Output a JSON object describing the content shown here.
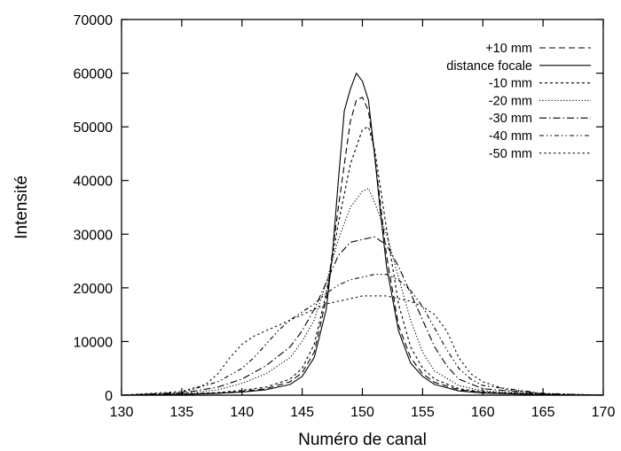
{
  "chart_data": {
    "type": "line",
    "title": "",
    "xlabel": "Numéro de canal",
    "ylabel": "Intensité",
    "xlim": [
      130,
      170
    ],
    "ylim": [
      0,
      70000
    ],
    "xticks": [
      130,
      135,
      140,
      145,
      150,
      155,
      160,
      165,
      170
    ],
    "yticks": [
      0,
      10000,
      20000,
      30000,
      40000,
      50000,
      60000,
      70000
    ],
    "grid": false,
    "legend_position": "top-right",
    "series": [
      {
        "name": "+10 mm",
        "dash": "7,4",
        "x": [
          130,
          135,
          138,
          140,
          142,
          144,
          145,
          146,
          147,
          148,
          149,
          149.5,
          150,
          150.5,
          151,
          152,
          153,
          154,
          155,
          156,
          158,
          160,
          165,
          170
        ],
        "y": [
          0,
          150,
          400,
          700,
          1200,
          2500,
          4200,
          8000,
          18000,
          35000,
          51000,
          55000,
          55500,
          53000,
          45000,
          26000,
          13000,
          7000,
          4000,
          2400,
          1000,
          500,
          100,
          0
        ]
      },
      {
        "name": "distance focale",
        "dash": "",
        "x": [
          130,
          135,
          138,
          140,
          142,
          144,
          145,
          146,
          147,
          147.5,
          148,
          148.5,
          149,
          149.5,
          150,
          150.5,
          151,
          151.5,
          152,
          153,
          154,
          155,
          156,
          158,
          160,
          165,
          170
        ],
        "y": [
          0,
          150,
          350,
          600,
          1000,
          2000,
          3500,
          7000,
          16000,
          26000,
          40000,
          53000,
          57000,
          60000,
          58500,
          55000,
          45000,
          34000,
          24000,
          12000,
          6000,
          3500,
          2000,
          800,
          400,
          100,
          0
        ]
      },
      {
        "name": "-10 mm",
        "dash": "3,3",
        "x": [
          130,
          135,
          138,
          140,
          142,
          144,
          145,
          146,
          147,
          148,
          149,
          150,
          150.5,
          151,
          152,
          153,
          154,
          155,
          156,
          158,
          160,
          165,
          170
        ],
        "y": [
          0,
          200,
          500,
          900,
          1500,
          3000,
          5000,
          9500,
          19000,
          32000,
          43000,
          49500,
          50000,
          46000,
          31000,
          17000,
          9000,
          5000,
          3000,
          1200,
          600,
          150,
          0
        ]
      },
      {
        "name": "-20 mm",
        "dash": "1.2,2.2",
        "x": [
          130,
          135,
          138,
          140,
          142,
          144,
          145,
          146,
          147,
          148,
          149,
          150,
          150.5,
          151,
          152,
          153,
          154,
          155,
          156,
          158,
          160,
          165,
          170
        ],
        "y": [
          0,
          300,
          1000,
          2200,
          4000,
          7000,
          10000,
          14000,
          21000,
          29000,
          35000,
          38000,
          38500,
          36000,
          30000,
          22000,
          14000,
          8000,
          4500,
          1800,
          800,
          200,
          0
        ]
      },
      {
        "name": "-30 mm",
        "dash": "8,3,1.5,3",
        "x": [
          130,
          135,
          138,
          140,
          142,
          144,
          145,
          146,
          147,
          148,
          149,
          150,
          151,
          152,
          153,
          154,
          155,
          156,
          157,
          158,
          160,
          165,
          170
        ],
        "y": [
          0,
          400,
          1500,
          3000,
          5500,
          9000,
          12000,
          16000,
          21000,
          26000,
          28500,
          29000,
          29500,
          28000,
          24000,
          19000,
          14000,
          9000,
          5500,
          3000,
          1200,
          250,
          0
        ]
      },
      {
        "name": "-40 mm",
        "dash": "5,3,1.5,3,1.5,3",
        "x": [
          130,
          135,
          138,
          140,
          141,
          142,
          143,
          144,
          145,
          146,
          147,
          148,
          149,
          150,
          151,
          152,
          153,
          154,
          155,
          156,
          157,
          158,
          159,
          160,
          165,
          170
        ],
        "y": [
          0,
          500,
          2500,
          5000,
          7000,
          9500,
          12000,
          14000,
          15500,
          17000,
          19000,
          20500,
          21500,
          22000,
          22500,
          22500,
          21500,
          19500,
          16500,
          12500,
          8500,
          5000,
          3000,
          1800,
          350,
          0
        ]
      },
      {
        "name": "-50 mm",
        "dash": "2.2,3.2",
        "x": [
          130,
          135,
          137,
          138,
          139,
          140,
          141,
          142,
          143,
          144,
          145,
          146,
          147,
          148,
          149,
          150,
          151,
          152,
          153,
          154,
          155,
          156,
          157,
          158,
          159,
          160,
          162,
          165,
          170
        ],
        "y": [
          0,
          700,
          2000,
          4000,
          7000,
          9500,
          11000,
          12000,
          13000,
          14000,
          15000,
          16000,
          17000,
          17500,
          18000,
          18500,
          18500,
          18500,
          18000,
          17500,
          16500,
          15000,
          12000,
          7000,
          4000,
          2500,
          1000,
          300,
          0
        ]
      }
    ]
  }
}
